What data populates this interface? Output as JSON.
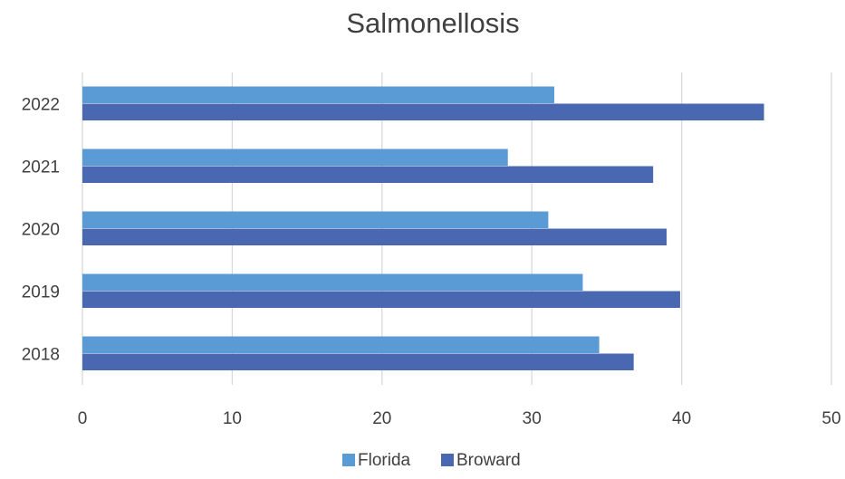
{
  "chart_data": {
    "type": "bar",
    "orientation": "horizontal",
    "title": "Salmonellosis",
    "xlabel": "",
    "ylabel": "",
    "categories": [
      "2018",
      "2019",
      "2020",
      "2021",
      "2022"
    ],
    "series": [
      {
        "name": "Florida",
        "color": "#5b9bd5",
        "values": [
          34.5,
          33.4,
          31.1,
          28.4,
          31.5
        ]
      },
      {
        "name": "Broward",
        "color": "#4a67b1",
        "values": [
          36.8,
          39.9,
          39.0,
          38.1,
          45.5
        ]
      }
    ],
    "xlim": [
      0,
      50
    ],
    "x_ticks": [
      0,
      10,
      20,
      30,
      40,
      50
    ],
    "grid": true,
    "legend": "bottom"
  }
}
